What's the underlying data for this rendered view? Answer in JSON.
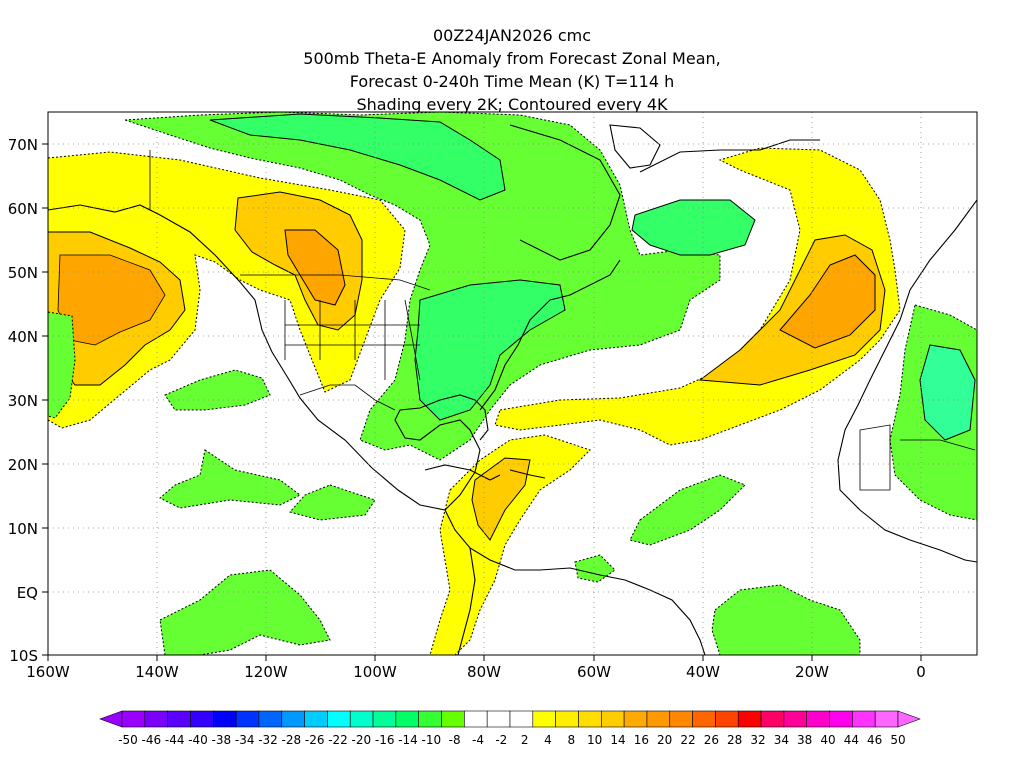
{
  "title": {
    "line1": "00Z24JAN2026 cmc",
    "line2": "500mb Theta-E Anomaly from Forecast Zonal Mean,",
    "line3": "Forecast 0-240h Time Mean (K) T=114 h",
    "line4": "Shading every 2K; Contoured every 4K"
  },
  "map": {
    "lon_range": [
      -160,
      10
    ],
    "lat_range": [
      -10,
      75
    ],
    "lat_labels": [
      "70N",
      "60N",
      "50N",
      "40N",
      "30N",
      "20N",
      "10N",
      "EQ",
      "10S"
    ],
    "lon_labels": [
      "160W",
      "140W",
      "120W",
      "100W",
      "80W",
      "60W",
      "40W",
      "20W",
      "0"
    ]
  },
  "colors": {
    "positive_light": "#ffff00",
    "positive_mid": "#ffcc00",
    "positive_strong": "#ffa500",
    "negative_light": "#66ff33",
    "negative_mid": "#33ff66",
    "negative_strong": "#33ff99",
    "land_outline": "#000000",
    "grid": "#888888"
  },
  "colorbar": {
    "labels": [
      "-50",
      "-46",
      "-44",
      "-40",
      "-38",
      "-34",
      "-32",
      "-28",
      "-26",
      "-22",
      "-20",
      "-16",
      "-14",
      "-10",
      "-8",
      "-4",
      "-2",
      "2",
      "4",
      "8",
      "10",
      "14",
      "16",
      "20",
      "22",
      "26",
      "28",
      "32",
      "34",
      "38",
      "40",
      "44",
      "46",
      "50"
    ],
    "colors": [
      "#9900ff",
      "#7a00ff",
      "#5a00ff",
      "#3300ff",
      "#0000ff",
      "#0033ff",
      "#0066ff",
      "#0099ff",
      "#00ccff",
      "#00ffff",
      "#00ffcc",
      "#00ff99",
      "#00ff66",
      "#33ff33",
      "#66ff00",
      "#ffffff",
      "#ffffff",
      "#ffffff",
      "#ffff00",
      "#ffee00",
      "#ffdd00",
      "#ffcc00",
      "#ffaa00",
      "#ff9900",
      "#ff8800",
      "#ff6600",
      "#ff4400",
      "#ff0000",
      "#ff0066",
      "#ff0099",
      "#ff00cc",
      "#ff00ee",
      "#ff33ff",
      "#ff66ff"
    ]
  }
}
